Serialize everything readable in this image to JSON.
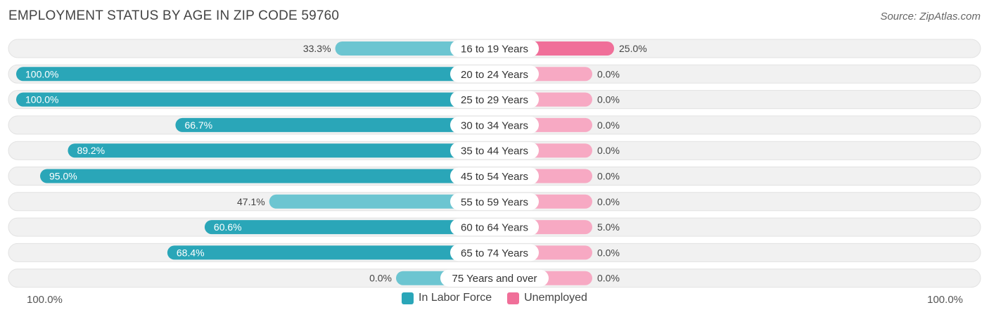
{
  "title": "EMPLOYMENT STATUS BY AGE IN ZIP CODE 59760",
  "source": "Source: ZipAtlas.com",
  "colors": {
    "labor_force": "#2aa6b8",
    "labor_force_light": "#6cc5d1",
    "unemployed": "#f06f99",
    "unemployed_light": "#f7a9c3",
    "row_bg": "#f1f1f1"
  },
  "axis": {
    "left_label": "100.0%",
    "right_label": "100.0%"
  },
  "legend": [
    {
      "label": "In Labor Force",
      "color": "#2aa6b8"
    },
    {
      "label": "Unemployed",
      "color": "#f06f99"
    }
  ],
  "chart_data": {
    "type": "bar",
    "orientation": "diverging-horizontal",
    "xlim": [
      -100,
      100
    ],
    "categories": [
      "16 to 19 Years",
      "20 to 24 Years",
      "25 to 29 Years",
      "30 to 34 Years",
      "35 to 44 Years",
      "45 to 54 Years",
      "55 to 59 Years",
      "60 to 64 Years",
      "65 to 74 Years",
      "75 Years and over"
    ],
    "series": [
      {
        "name": "In Labor Force",
        "values": [
          33.3,
          100.0,
          100.0,
          66.7,
          89.2,
          95.0,
          47.1,
          60.6,
          68.4,
          0.0
        ],
        "labels": [
          "33.3%",
          "100.0%",
          "100.0%",
          "66.7%",
          "89.2%",
          "95.0%",
          "47.1%",
          "60.6%",
          "68.4%",
          "0.0%"
        ]
      },
      {
        "name": "Unemployed",
        "values": [
          25.0,
          0.0,
          0.0,
          0.0,
          0.0,
          0.0,
          0.0,
          5.0,
          0.0,
          0.0
        ],
        "labels": [
          "25.0%",
          "0.0%",
          "0.0%",
          "0.0%",
          "0.0%",
          "0.0%",
          "0.0%",
          "5.0%",
          "0.0%",
          "0.0%"
        ]
      }
    ],
    "legend_position": "bottom-center"
  }
}
